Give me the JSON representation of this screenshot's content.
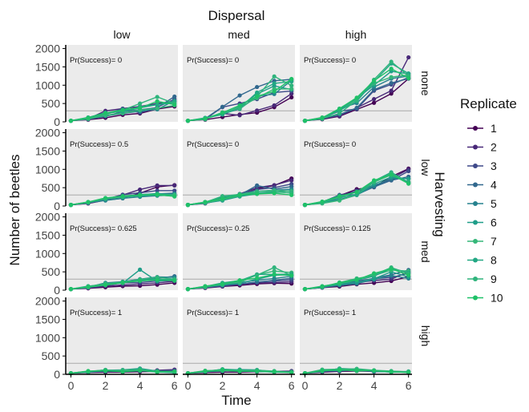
{
  "chart_data": {
    "type": "line",
    "title": "",
    "facet_col_title": "Dispersal",
    "facet_row_title": "Harvesting",
    "xlabel": "Time",
    "ylabel": "Number of beetles",
    "cols": [
      "low",
      "med",
      "high"
    ],
    "rows": [
      "none",
      "low",
      "med",
      "high"
    ],
    "x": [
      0,
      1,
      2,
      3,
      4,
      5,
      6
    ],
    "xticks": [
      "0",
      "2",
      "4",
      "6"
    ],
    "ylim": [
      0,
      2000
    ],
    "yticks": [
      "0",
      "500",
      "1000",
      "1500",
      "2000"
    ],
    "reference_line": 300,
    "legend_title": "Replicate",
    "legend_labels": [
      "1",
      "2",
      "3",
      "4",
      "5",
      "6",
      "7",
      "8",
      "9",
      "10"
    ],
    "colors": [
      "#440154",
      "#482878",
      "#3e4989",
      "#31688e",
      "#26828e",
      "#1f9e89",
      "#35b779",
      "#22a884",
      "#2fb47c",
      "#1fc168"
    ],
    "annotations": [
      [
        "Pr(Success)= 0",
        "Pr(Success)= 0",
        "Pr(Success)= 0"
      ],
      [
        "Pr(Success)= 0.5",
        "Pr(Success)= 0",
        "Pr(Success)= 0"
      ],
      [
        "Pr(Success)= 0.625",
        "Pr(Success)= 0.25",
        "Pr(Success)= 0.125"
      ],
      [
        "Pr(Success)= 1",
        "Pr(Success)= 1",
        "Pr(Success)= 1"
      ]
    ],
    "panels": [
      [
        [
          [
            30,
            60,
            110,
            190,
            230,
            350,
            420
          ],
          [
            30,
            80,
            300,
            360,
            420,
            500,
            560
          ],
          [
            30,
            90,
            200,
            360,
            250,
            400,
            620
          ],
          [
            30,
            70,
            150,
            280,
            330,
            390,
            690
          ],
          [
            30,
            90,
            160,
            230,
            290,
            340,
            580
          ],
          [
            30,
            110,
            220,
            300,
            410,
            470,
            520
          ],
          [
            30,
            80,
            180,
            240,
            320,
            370,
            450
          ],
          [
            30,
            120,
            250,
            280,
            380,
            470,
            560
          ],
          [
            30,
            100,
            210,
            320,
            500,
            680,
            500
          ],
          [
            30,
            110,
            240,
            330,
            380,
            560,
            470
          ]
        ],
        [
          [
            30,
            60,
            130,
            200,
            250,
            400,
            670
          ],
          [
            30,
            90,
            230,
            180,
            310,
            450,
            770
          ],
          [
            30,
            70,
            400,
            500,
            620,
            800,
            840
          ],
          [
            30,
            90,
            410,
            720,
            950,
            1120,
            1160
          ],
          [
            30,
            90,
            220,
            350,
            700,
            760,
            1130
          ],
          [
            30,
            90,
            210,
            420,
            760,
            980,
            880
          ],
          [
            30,
            100,
            230,
            400,
            650,
            900,
            900
          ],
          [
            30,
            110,
            200,
            380,
            800,
            1050,
            1100
          ],
          [
            30,
            70,
            260,
            360,
            680,
            1240,
            990
          ],
          [
            30,
            90,
            250,
            450,
            700,
            830,
            1170
          ]
        ],
        [
          [
            30,
            70,
            150,
            340,
            520,
            770,
            1180
          ],
          [
            30,
            90,
            160,
            380,
            620,
            850,
            1760
          ],
          [
            30,
            110,
            290,
            350,
            850,
            1020,
            1210
          ],
          [
            30,
            90,
            200,
            380,
            880,
            1060,
            1180
          ],
          [
            30,
            90,
            360,
            510,
            950,
            1180,
            1250
          ],
          [
            30,
            110,
            340,
            640,
            1000,
            1380,
            1310
          ],
          [
            30,
            120,
            300,
            620,
            1050,
            1220,
            1280
          ],
          [
            30,
            80,
            310,
            560,
            1100,
            1590,
            1320
          ],
          [
            30,
            90,
            230,
            590,
            1150,
            1640,
            1250
          ],
          [
            30,
            110,
            360,
            660,
            1120,
            1450,
            1190
          ]
        ]
      ],
      [
        [
          [
            30,
            70,
            160,
            210,
            350,
            520,
            570
          ],
          [
            30,
            80,
            190,
            300,
            450,
            560,
            560
          ],
          [
            30,
            90,
            180,
            310,
            360,
            420,
            420
          ],
          [
            30,
            80,
            180,
            250,
            290,
            330,
            350
          ],
          [
            30,
            90,
            150,
            210,
            250,
            280,
            300
          ],
          [
            30,
            100,
            200,
            270,
            310,
            340,
            320
          ],
          [
            30,
            100,
            210,
            250,
            300,
            320,
            300
          ],
          [
            30,
            110,
            190,
            240,
            280,
            300,
            270
          ],
          [
            30,
            100,
            200,
            250,
            300,
            320,
            280
          ],
          [
            30,
            110,
            220,
            270,
            300,
            310,
            260
          ]
        ],
        [
          [
            30,
            80,
            210,
            290,
            470,
            560,
            750
          ],
          [
            30,
            70,
            180,
            330,
            500,
            570,
            700
          ],
          [
            30,
            80,
            180,
            310,
            450,
            500,
            600
          ],
          [
            30,
            100,
            200,
            300,
            560,
            460,
            530
          ],
          [
            30,
            90,
            190,
            330,
            400,
            430,
            460
          ],
          [
            30,
            80,
            150,
            260,
            330,
            380,
            420
          ],
          [
            30,
            90,
            180,
            280,
            390,
            430,
            400
          ],
          [
            30,
            110,
            240,
            290,
            350,
            380,
            360
          ],
          [
            30,
            100,
            270,
            320,
            400,
            400,
            350
          ],
          [
            30,
            110,
            200,
            300,
            330,
            350,
            300
          ]
        ],
        [
          [
            30,
            80,
            280,
            460,
            520,
            800,
            1020
          ],
          [
            30,
            100,
            300,
            400,
            510,
            750,
            1000
          ],
          [
            30,
            90,
            230,
            420,
            570,
            700,
            950
          ],
          [
            30,
            110,
            300,
            310,
            520,
            700,
            800
          ],
          [
            30,
            110,
            180,
            300,
            550,
            750,
            750
          ],
          [
            30,
            80,
            160,
            300,
            600,
            790,
            740
          ],
          [
            30,
            70,
            150,
            310,
            650,
            850,
            660
          ],
          [
            30,
            100,
            220,
            320,
            680,
            920,
            640
          ],
          [
            30,
            110,
            240,
            380,
            670,
            900,
            620
          ],
          [
            30,
            120,
            270,
            380,
            700,
            860,
            610
          ]
        ]
      ],
      [
        [
          [
            30,
            50,
            80,
            110,
            120,
            150,
            200
          ],
          [
            30,
            60,
            110,
            140,
            170,
            200,
            240
          ],
          [
            30,
            70,
            130,
            200,
            210,
            250,
            260
          ],
          [
            30,
            70,
            150,
            230,
            290,
            320,
            380
          ],
          [
            30,
            80,
            200,
            230,
            300,
            360,
            350
          ],
          [
            30,
            80,
            170,
            190,
            560,
            240,
            300
          ],
          [
            30,
            80,
            140,
            200,
            280,
            290,
            280
          ],
          [
            30,
            110,
            160,
            220,
            280,
            300,
            280
          ],
          [
            30,
            100,
            180,
            220,
            290,
            350,
            300
          ],
          [
            30,
            90,
            140,
            210,
            250,
            280,
            260
          ]
        ],
        [
          [
            30,
            60,
            100,
            130,
            170,
            190,
            180
          ],
          [
            30,
            70,
            100,
            160,
            200,
            210,
            230
          ],
          [
            30,
            70,
            120,
            170,
            220,
            250,
            280
          ],
          [
            30,
            80,
            140,
            170,
            220,
            270,
            330
          ],
          [
            30,
            90,
            130,
            210,
            270,
            320,
            380
          ],
          [
            30,
            90,
            150,
            190,
            300,
            410,
            420
          ],
          [
            30,
            80,
            180,
            210,
            420,
            520,
            480
          ],
          [
            30,
            100,
            200,
            260,
            430,
            430,
            440
          ],
          [
            30,
            100,
            150,
            250,
            410,
            620,
            400
          ],
          [
            30,
            110,
            170,
            270,
            330,
            430,
            400
          ]
        ],
        [
          [
            30,
            70,
            100,
            160,
            200,
            250,
            370
          ],
          [
            30,
            80,
            140,
            210,
            260,
            300,
            500
          ],
          [
            30,
            70,
            130,
            250,
            310,
            350,
            460
          ],
          [
            30,
            90,
            160,
            210,
            330,
            420,
            550
          ],
          [
            30,
            90,
            130,
            180,
            290,
            400,
            320
          ],
          [
            30,
            100,
            160,
            220,
            310,
            500,
            360
          ],
          [
            30,
            80,
            210,
            320,
            400,
            550,
            520
          ],
          [
            30,
            80,
            170,
            270,
            380,
            600,
            480
          ],
          [
            30,
            110,
            180,
            300,
            420,
            620,
            450
          ],
          [
            30,
            100,
            200,
            280,
            460,
            580,
            410
          ]
        ]
      ],
      [
        [
          [
            30,
            50,
            60,
            60,
            70,
            80,
            80
          ],
          [
            30,
            60,
            70,
            80,
            90,
            110,
            130
          ],
          [
            30,
            70,
            90,
            100,
            90,
            90,
            110
          ],
          [
            30,
            70,
            120,
            90,
            100,
            80,
            80
          ],
          [
            30,
            80,
            90,
            80,
            110,
            60,
            50
          ],
          [
            30,
            70,
            110,
            120,
            160,
            90,
            60
          ],
          [
            30,
            80,
            90,
            110,
            140,
            80,
            70
          ],
          [
            30,
            60,
            100,
            80,
            150,
            70,
            40
          ],
          [
            30,
            80,
            120,
            90,
            130,
            60,
            70
          ],
          [
            30,
            90,
            100,
            70,
            100,
            70,
            80
          ]
        ],
        [
          [
            30,
            50,
            60,
            60,
            70,
            70,
            80
          ],
          [
            30,
            60,
            110,
            90,
            70,
            80,
            90
          ],
          [
            30,
            80,
            120,
            100,
            80,
            70,
            70
          ],
          [
            30,
            70,
            100,
            120,
            90,
            70,
            60
          ],
          [
            30,
            90,
            130,
            110,
            80,
            60,
            50
          ],
          [
            30,
            80,
            90,
            130,
            120,
            70,
            60
          ],
          [
            30,
            100,
            110,
            80,
            90,
            80,
            50
          ],
          [
            30,
            70,
            140,
            120,
            90,
            60,
            70
          ],
          [
            30,
            80,
            100,
            100,
            110,
            90,
            60
          ],
          [
            30,
            90,
            120,
            90,
            80,
            70,
            50
          ]
        ],
        [
          [
            30,
            60,
            80,
            90,
            80,
            80,
            70
          ],
          [
            30,
            70,
            110,
            100,
            90,
            80,
            60
          ],
          [
            30,
            80,
            90,
            120,
            70,
            80,
            60
          ],
          [
            30,
            90,
            120,
            110,
            80,
            70,
            50
          ],
          [
            30,
            100,
            150,
            120,
            90,
            60,
            70
          ],
          [
            30,
            110,
            100,
            130,
            100,
            80,
            60
          ],
          [
            30,
            90,
            130,
            90,
            110,
            70,
            60
          ],
          [
            30,
            80,
            160,
            140,
            90,
            60,
            80
          ],
          [
            30,
            130,
            140,
            150,
            110,
            90,
            70
          ],
          [
            30,
            100,
            120,
            110,
            100,
            70,
            50
          ]
        ]
      ]
    ]
  }
}
